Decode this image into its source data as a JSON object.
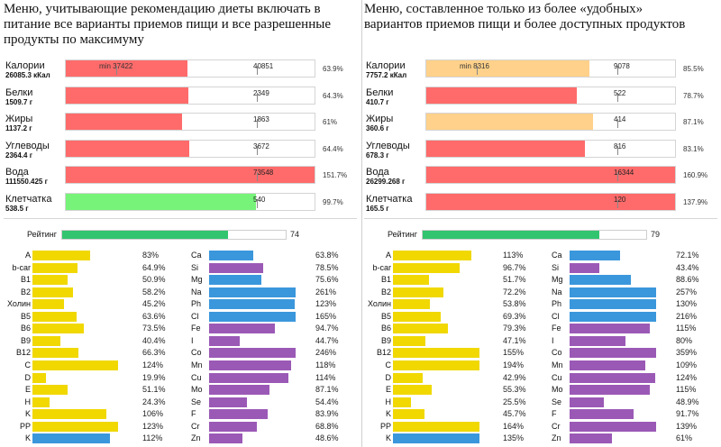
{
  "colors": {
    "red": "#ff6b6b",
    "green": "#77f37a",
    "orange": "#ffd18a",
    "yellow": "#f0d800",
    "blue": "#3b97dc",
    "purple": "#9b59b6",
    "rating": "#33c470"
  },
  "chart_data": [
    {
      "type": "bar",
      "title": "Меню, учитывающие рекомендацию диеты включать в питание все варианты приемов пищи и все разрешенные продукты  по максимуму",
      "title_lines": [
        "Меню, учитывающие рекомендацию диеты включать в",
        "питание все варианты приемов пищи и все разрешенные",
        "продукты  по максимуму"
      ],
      "nutrients": [
        {
          "name": "Калории",
          "value_label": "26085.3 кКал",
          "min_label": "min 37422",
          "target": "40851",
          "percent": 63.9,
          "percent_label": "63.9%",
          "color": "red"
        },
        {
          "name": "Белки",
          "value_label": "1509.7 г",
          "target": "2349",
          "percent": 64.3,
          "percent_label": "64.3%",
          "color": "red"
        },
        {
          "name": "Жиры",
          "value_label": "1137.2 г",
          "target": "1863",
          "percent": 61,
          "percent_label": "61%",
          "color": "red"
        },
        {
          "name": "Углеводы",
          "value_label": "2364.4 г",
          "target": "3672",
          "percent": 64.4,
          "percent_label": "64.4%",
          "color": "red"
        },
        {
          "name": "Вода",
          "value_label": "111550.425 г",
          "target": "73548",
          "percent": 151.7,
          "percent_label": "151.7%",
          "color": "red"
        },
        {
          "name": "Клетчатка",
          "value_label": "538.5 г",
          "target": "540",
          "percent": 99.7,
          "percent_label": "99.7%",
          "color": "green"
        }
      ],
      "rating": {
        "label": "Рейтинг",
        "value": 74,
        "value_label": "74"
      },
      "micros_left": [
        {
          "name": "A",
          "percent": 83,
          "label": "83%",
          "color": "yellow"
        },
        {
          "name": "b-car",
          "percent": 64.9,
          "label": "64.9%",
          "color": "yellow"
        },
        {
          "name": "B1",
          "percent": 50.9,
          "label": "50.9%",
          "color": "yellow"
        },
        {
          "name": "B2",
          "percent": 58.2,
          "label": "58.2%",
          "color": "yellow"
        },
        {
          "name": "Холин",
          "percent": 45.2,
          "label": "45.2%",
          "color": "yellow"
        },
        {
          "name": "B5",
          "percent": 63.6,
          "label": "63.6%",
          "color": "yellow"
        },
        {
          "name": "B6",
          "percent": 73.5,
          "label": "73.5%",
          "color": "yellow"
        },
        {
          "name": "B9",
          "percent": 40.4,
          "label": "40.4%",
          "color": "yellow"
        },
        {
          "name": "B12",
          "percent": 66.3,
          "label": "66.3%",
          "color": "yellow"
        },
        {
          "name": "C",
          "percent": 124,
          "label": "124%",
          "color": "yellow"
        },
        {
          "name": "D",
          "percent": 19.9,
          "label": "19.9%",
          "color": "yellow"
        },
        {
          "name": "E",
          "percent": 51.1,
          "label": "51.1%",
          "color": "yellow"
        },
        {
          "name": "H",
          "percent": 24.3,
          "label": "24.3%",
          "color": "yellow"
        },
        {
          "name": "K",
          "percent": 106,
          "label": "106%",
          "color": "yellow"
        },
        {
          "name": "PP",
          "percent": 123,
          "label": "123%",
          "color": "yellow"
        },
        {
          "name": "K",
          "percent": 112,
          "label": "112%",
          "color": "blue"
        }
      ],
      "micros_right": [
        {
          "name": "Ca",
          "percent": 63.8,
          "label": "63.8%",
          "color": "blue"
        },
        {
          "name": "Si",
          "percent": 78.5,
          "label": "78.5%",
          "color": "purple"
        },
        {
          "name": "Mg",
          "percent": 75.6,
          "label": "75.6%",
          "color": "blue"
        },
        {
          "name": "Na",
          "percent": 261,
          "label": "261%",
          "color": "blue"
        },
        {
          "name": "Ph",
          "percent": 123,
          "label": "123%",
          "color": "blue"
        },
        {
          "name": "Cl",
          "percent": 165,
          "label": "165%",
          "color": "blue"
        },
        {
          "name": "Fe",
          "percent": 94.7,
          "label": "94.7%",
          "color": "purple"
        },
        {
          "name": "I",
          "percent": 44.7,
          "label": "44.7%",
          "color": "purple"
        },
        {
          "name": "Co",
          "percent": 246,
          "label": "246%",
          "color": "purple"
        },
        {
          "name": "Mn",
          "percent": 118,
          "label": "118%",
          "color": "purple"
        },
        {
          "name": "Cu",
          "percent": 114,
          "label": "114%",
          "color": "purple"
        },
        {
          "name": "Mo",
          "percent": 87.1,
          "label": "87.1%",
          "color": "purple"
        },
        {
          "name": "Se",
          "percent": 54.4,
          "label": "54.4%",
          "color": "purple"
        },
        {
          "name": "F",
          "percent": 83.9,
          "label": "83.9%",
          "color": "purple"
        },
        {
          "name": "Cr",
          "percent": 68.8,
          "label": "68.8%",
          "color": "purple"
        },
        {
          "name": "Zn",
          "percent": 48.6,
          "label": "48.6%",
          "color": "purple"
        }
      ]
    },
    {
      "type": "bar",
      "title": "Меню, составленное только из более «удобных» вариантов приемов пищи и более доступных продуктов",
      "title_lines": [
        "Меню, составленное только из более «удобных»",
        "вариантов приемов пищи и более доступных продуктов"
      ],
      "nutrients": [
        {
          "name": "Калории",
          "value_label": "7757.2 кКал",
          "min_label": "min 8316",
          "target": "9078",
          "percent": 85.5,
          "percent_label": "85.5%",
          "color": "orange"
        },
        {
          "name": "Белки",
          "value_label": "410.7 г",
          "target": "522",
          "percent": 78.7,
          "percent_label": "78.7%",
          "color": "red"
        },
        {
          "name": "Жиры",
          "value_label": "360.6 г",
          "target": "414",
          "percent": 87.1,
          "percent_label": "87.1%",
          "color": "orange"
        },
        {
          "name": "Углеводы",
          "value_label": "678.3 г",
          "target": "816",
          "percent": 83.1,
          "percent_label": "83.1%",
          "color": "red"
        },
        {
          "name": "Вода",
          "value_label": "26299.268 г",
          "target": "16344",
          "percent": 160.9,
          "percent_label": "160.9%",
          "color": "red"
        },
        {
          "name": "Клетчатка",
          "value_label": "165.5 г",
          "target": "120",
          "percent": 137.9,
          "percent_label": "137.9%",
          "color": "red"
        }
      ],
      "rating": {
        "label": "Рейтинг",
        "value": 79,
        "value_label": "79"
      },
      "micros_left": [
        {
          "name": "A",
          "percent": 113,
          "label": "113%",
          "color": "yellow"
        },
        {
          "name": "b-car",
          "percent": 96.7,
          "label": "96.7%",
          "color": "yellow"
        },
        {
          "name": "B1",
          "percent": 51.7,
          "label": "51.7%",
          "color": "yellow"
        },
        {
          "name": "B2",
          "percent": 72.2,
          "label": "72.2%",
          "color": "yellow"
        },
        {
          "name": "Холин",
          "percent": 53.8,
          "label": "53.8%",
          "color": "yellow"
        },
        {
          "name": "B5",
          "percent": 69.3,
          "label": "69.3%",
          "color": "yellow"
        },
        {
          "name": "B6",
          "percent": 79.3,
          "label": "79.3%",
          "color": "yellow"
        },
        {
          "name": "B9",
          "percent": 47.1,
          "label": "47.1%",
          "color": "yellow"
        },
        {
          "name": "B12",
          "percent": 155,
          "label": "155%",
          "color": "yellow"
        },
        {
          "name": "C",
          "percent": 194,
          "label": "194%",
          "color": "yellow"
        },
        {
          "name": "D",
          "percent": 42.9,
          "label": "42.9%",
          "color": "yellow"
        },
        {
          "name": "E",
          "percent": 55.3,
          "label": "55.3%",
          "color": "yellow"
        },
        {
          "name": "H",
          "percent": 25.5,
          "label": "25.5%",
          "color": "yellow"
        },
        {
          "name": "K",
          "percent": 45.7,
          "label": "45.7%",
          "color": "yellow"
        },
        {
          "name": "PP",
          "percent": 164,
          "label": "164%",
          "color": "yellow"
        },
        {
          "name": "K",
          "percent": 135,
          "label": "135%",
          "color": "blue"
        }
      ],
      "micros_right": [
        {
          "name": "Ca",
          "percent": 72.1,
          "label": "72.1%",
          "color": "blue"
        },
        {
          "name": "Si",
          "percent": 43.4,
          "label": "43.4%",
          "color": "purple"
        },
        {
          "name": "Mg",
          "percent": 88.6,
          "label": "88.6%",
          "color": "blue"
        },
        {
          "name": "Na",
          "percent": 257,
          "label": "257%",
          "color": "blue"
        },
        {
          "name": "Ph",
          "percent": 130,
          "label": "130%",
          "color": "blue"
        },
        {
          "name": "Cl",
          "percent": 216,
          "label": "216%",
          "color": "blue"
        },
        {
          "name": "Fe",
          "percent": 115,
          "label": "115%",
          "color": "purple"
        },
        {
          "name": "I",
          "percent": 80,
          "label": "80%",
          "color": "purple"
        },
        {
          "name": "Co",
          "percent": 359,
          "label": "359%",
          "color": "purple"
        },
        {
          "name": "Mn",
          "percent": 109,
          "label": "109%",
          "color": "purple"
        },
        {
          "name": "Cu",
          "percent": 124,
          "label": "124%",
          "color": "purple"
        },
        {
          "name": "Mo",
          "percent": 115,
          "label": "115%",
          "color": "purple"
        },
        {
          "name": "Se",
          "percent": 48.9,
          "label": "48.9%",
          "color": "purple"
        },
        {
          "name": "F",
          "percent": 91.7,
          "label": "91.7%",
          "color": "purple"
        },
        {
          "name": "Cr",
          "percent": 139,
          "label": "139%",
          "color": "purple"
        },
        {
          "name": "Zn",
          "percent": 61,
          "label": "61%",
          "color": "purple"
        }
      ]
    }
  ]
}
